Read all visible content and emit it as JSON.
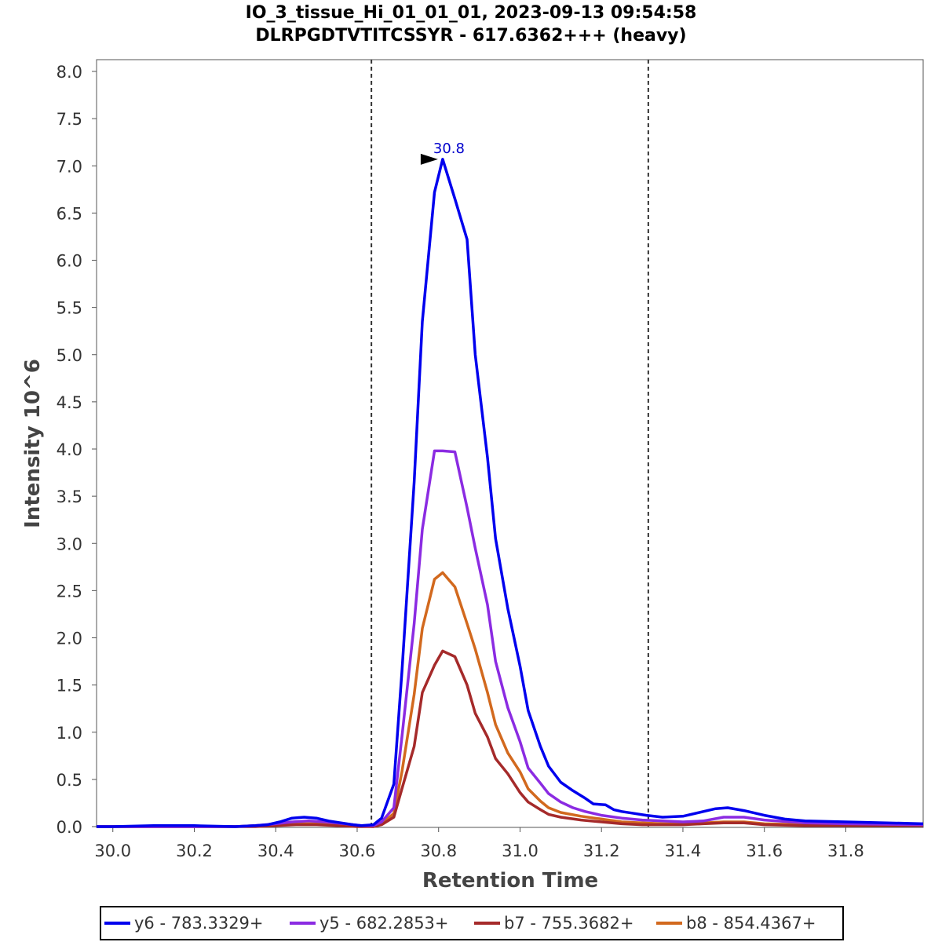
{
  "chart_data": {
    "type": "line",
    "title_line1": "IO_3_tissue_Hi_01_01_01, 2023-09-13 09:54:58",
    "title_line2": "DLRPGDTVTITCSSYR - 617.6362+++ (heavy)",
    "xlabel": "Retention Time",
    "ylabel": "Intensity 10^6",
    "xlim": [
      29.96,
      31.99
    ],
    "ylim": [
      0,
      8.15
    ],
    "xticks": [
      30.0,
      30.2,
      30.4,
      30.6,
      30.8,
      31.0,
      31.2,
      31.4,
      31.6,
      31.8
    ],
    "xtick_labels": [
      "30.0",
      "30.2",
      "30.4",
      "30.6",
      "30.8",
      "31.0",
      "31.2",
      "31.4",
      "31.6",
      "31.8"
    ],
    "yticks": [
      0,
      0.5,
      1.0,
      1.5,
      2.0,
      2.5,
      3.0,
      3.5,
      4.0,
      4.5,
      5.0,
      5.5,
      6.0,
      6.5,
      7.0,
      7.5,
      8.0
    ],
    "ytick_labels": [
      "0.0",
      "0.5",
      "1.0",
      "1.5",
      "2.0",
      "2.5",
      "3.0",
      "3.5",
      "4.0",
      "4.5",
      "5.0",
      "5.5",
      "6.0",
      "6.5",
      "7.0",
      "7.5",
      "8.0"
    ],
    "boundaries": [
      30.635,
      31.315
    ],
    "peak_annotation": {
      "x": 30.81,
      "y": 7.07,
      "label": "30.8",
      "color": "#0000cc"
    },
    "series": [
      {
        "name": "y6 - 783.3329+",
        "color": "#0000ee",
        "x": [
          29.96,
          30.0,
          30.1,
          30.2,
          30.3,
          30.35,
          30.38,
          30.41,
          30.44,
          30.47,
          30.5,
          30.53,
          30.56,
          30.59,
          30.61,
          30.64,
          30.66,
          30.69,
          30.71,
          30.74,
          30.76,
          30.79,
          30.81,
          30.84,
          30.87,
          30.89,
          30.92,
          30.94,
          30.97,
          31.0,
          31.02,
          31.05,
          31.07,
          31.1,
          31.13,
          31.16,
          31.18,
          31.21,
          31.23,
          31.25,
          31.28,
          31.31,
          31.35,
          31.4,
          31.45,
          31.48,
          31.51,
          31.55,
          31.6,
          31.65,
          31.7,
          31.8,
          31.9,
          31.99
        ],
        "values": [
          0.0,
          0.0,
          0.01,
          0.01,
          0.0,
          0.01,
          0.02,
          0.05,
          0.09,
          0.1,
          0.09,
          0.06,
          0.04,
          0.02,
          0.01,
          0.02,
          0.09,
          0.45,
          1.64,
          3.65,
          5.35,
          6.72,
          7.07,
          6.65,
          6.22,
          5.0,
          3.91,
          3.05,
          2.31,
          1.7,
          1.23,
          0.85,
          0.64,
          0.47,
          0.38,
          0.3,
          0.24,
          0.23,
          0.18,
          0.16,
          0.14,
          0.12,
          0.1,
          0.11,
          0.16,
          0.19,
          0.2,
          0.17,
          0.12,
          0.08,
          0.06,
          0.05,
          0.04,
          0.03
        ]
      },
      {
        "name": "y5 - 682.2853+",
        "color": "#8b2be2",
        "x": [
          29.96,
          30.3,
          30.35,
          30.4,
          30.44,
          30.48,
          30.52,
          30.57,
          30.61,
          30.64,
          30.66,
          30.69,
          30.71,
          30.74,
          30.76,
          30.79,
          30.81,
          30.84,
          30.87,
          30.89,
          30.92,
          30.94,
          30.97,
          31.0,
          31.02,
          31.05,
          31.07,
          31.1,
          31.13,
          31.16,
          31.2,
          31.25,
          31.3,
          31.35,
          31.4,
          31.45,
          31.5,
          31.55,
          31.6,
          31.7,
          31.8,
          31.99
        ],
        "values": [
          0.0,
          0.0,
          0.01,
          0.03,
          0.05,
          0.06,
          0.05,
          0.03,
          0.01,
          0.01,
          0.05,
          0.2,
          0.95,
          2.15,
          3.15,
          3.98,
          3.98,
          3.97,
          3.38,
          2.95,
          2.35,
          1.75,
          1.26,
          0.9,
          0.62,
          0.46,
          0.35,
          0.26,
          0.2,
          0.16,
          0.12,
          0.09,
          0.07,
          0.06,
          0.05,
          0.06,
          0.1,
          0.1,
          0.07,
          0.04,
          0.03,
          0.02
        ]
      },
      {
        "name": "b7 - 755.3682+",
        "color": "#a52a2a",
        "x": [
          29.96,
          30.3,
          30.35,
          30.4,
          30.45,
          30.5,
          30.55,
          30.6,
          30.64,
          30.66,
          30.69,
          30.71,
          30.74,
          30.76,
          30.79,
          30.81,
          30.84,
          30.87,
          30.89,
          30.92,
          30.94,
          30.97,
          31.0,
          31.02,
          31.05,
          31.07,
          31.1,
          31.15,
          31.2,
          31.25,
          31.3,
          31.35,
          31.4,
          31.45,
          31.5,
          31.55,
          31.6,
          31.7,
          31.99
        ],
        "values": [
          0.0,
          0.0,
          0.0,
          0.01,
          0.02,
          0.02,
          0.01,
          0.0,
          0.0,
          0.02,
          0.1,
          0.4,
          0.85,
          1.42,
          1.71,
          1.86,
          1.8,
          1.5,
          1.2,
          0.95,
          0.72,
          0.56,
          0.36,
          0.26,
          0.18,
          0.13,
          0.1,
          0.07,
          0.05,
          0.03,
          0.02,
          0.02,
          0.02,
          0.03,
          0.04,
          0.04,
          0.02,
          0.01,
          0.01
        ]
      },
      {
        "name": "b8 - 854.4367+",
        "color": "#d2691e",
        "x": [
          29.96,
          30.3,
          30.35,
          30.4,
          30.45,
          30.5,
          30.55,
          30.6,
          30.64,
          30.66,
          30.69,
          30.71,
          30.74,
          30.76,
          30.79,
          30.81,
          30.84,
          30.87,
          30.89,
          30.92,
          30.94,
          30.97,
          31.0,
          31.02,
          31.05,
          31.07,
          31.1,
          31.15,
          31.2,
          31.25,
          31.3,
          31.35,
          31.4,
          31.45,
          31.5,
          31.55,
          31.6,
          31.7,
          31.99
        ],
        "values": [
          0.0,
          0.0,
          0.01,
          0.02,
          0.03,
          0.03,
          0.02,
          0.01,
          0.0,
          0.03,
          0.14,
          0.58,
          1.4,
          2.1,
          2.62,
          2.69,
          2.54,
          2.15,
          1.88,
          1.42,
          1.08,
          0.78,
          0.58,
          0.4,
          0.27,
          0.2,
          0.15,
          0.11,
          0.08,
          0.05,
          0.04,
          0.03,
          0.03,
          0.04,
          0.05,
          0.05,
          0.03,
          0.02,
          0.01
        ]
      }
    ]
  }
}
